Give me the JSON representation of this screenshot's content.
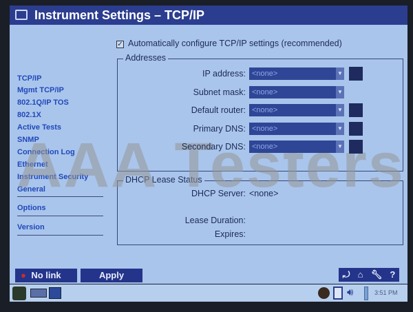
{
  "window": {
    "title": "Instrument Settings – TCP/IP"
  },
  "sidebar": {
    "items": [
      "TCP/IP",
      "Mgmt TCP/IP",
      "802.1Q/IP TOS",
      "802.1X",
      "Active Tests",
      "SNMP",
      "Connection Log",
      "Ethernet",
      "Instrument Security",
      "General"
    ],
    "options": "Options",
    "version": "Version"
  },
  "auto_config": {
    "label": "Automatically configure TCP/IP settings (recommended)",
    "checked": true
  },
  "addresses": {
    "legend": "Addresses",
    "rows": [
      {
        "label": "IP address:",
        "value": "<none>",
        "button": true
      },
      {
        "label": "Subnet mask:",
        "value": "<none>",
        "button": false
      },
      {
        "label": "Default router:",
        "value": "<none>",
        "button": true
      },
      {
        "label": "Primary DNS:",
        "value": "<none>",
        "button": true
      },
      {
        "label": "Secondary DNS:",
        "value": "<none>",
        "button": true
      }
    ]
  },
  "dhcp": {
    "legend": "DHCP Lease Status",
    "server_label": "DHCP Server:",
    "server_value": "<none>",
    "duration_label": "Lease Duration:",
    "expires_label": "Expires:"
  },
  "footer": {
    "link_status": "No link",
    "apply": "Apply",
    "icons": [
      "back-icon",
      "home-icon",
      "wrench-icon",
      "help-icon"
    ]
  },
  "taskbar": {
    "clock": "3:51 PM"
  },
  "watermark": "AAA Testers",
  "colors": {
    "titlebar": "#2b3d8f",
    "background": "#a9c5ec",
    "link": "#2148b8",
    "dropdown": "#2f4696"
  }
}
